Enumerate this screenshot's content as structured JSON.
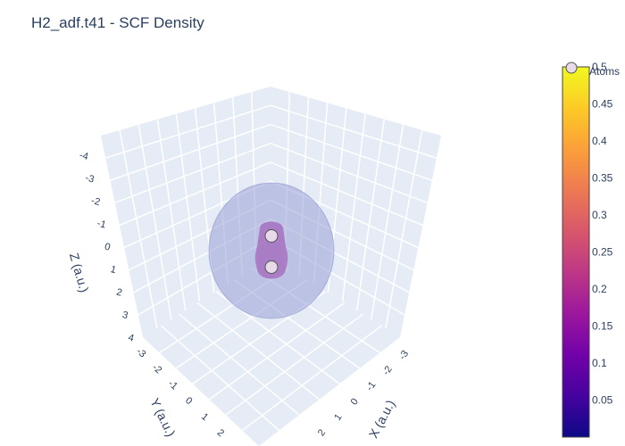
{
  "title": "H2_adf.t41 - SCF Density",
  "chart_data": {
    "type": "scatter3d",
    "title": "H2_adf.t41 - SCF Density",
    "axes": {
      "x": {
        "label": "X (a.u.)",
        "ticks": [
          "-3",
          "-2",
          "-1",
          "0",
          "1",
          "2"
        ]
      },
      "y": {
        "label": "Y (a.u.)",
        "ticks": [
          "-3",
          "-2",
          "-1",
          "0",
          "1",
          "2"
        ]
      },
      "z": {
        "label": "Z (a.u.)",
        "ticks": [
          "-4",
          "-3",
          "-2",
          "-1",
          "0",
          "1",
          "2",
          "3",
          "4"
        ]
      }
    },
    "atoms": {
      "name": "Atoms",
      "points": [
        {
          "x": 0,
          "y": 0,
          "z": 0.7
        },
        {
          "x": 0,
          "y": 0,
          "z": -0.7
        }
      ]
    },
    "isosurfaces": [
      {
        "level": "outer",
        "color": "#9aa0d6",
        "opacity": 0.55
      },
      {
        "level": "inner",
        "color": "#9d4fb0",
        "opacity": 0.6
      }
    ],
    "colorbar": {
      "min": 0,
      "max": 0.5,
      "ticks": [
        "0.05",
        "0.1",
        "0.15",
        "0.2",
        "0.25",
        "0.3",
        "0.35",
        "0.4",
        "0.45",
        "0.5"
      ],
      "colorscale": [
        "#0d0887",
        "#46039f",
        "#7201a8",
        "#9c179e",
        "#bd3786",
        "#d8576b",
        "#ed7953",
        "#fb9f3a",
        "#fdca26",
        "#f0f921"
      ]
    },
    "legend": {
      "placement": "top-right",
      "entries": [
        "Atoms"
      ]
    },
    "grid": true
  }
}
